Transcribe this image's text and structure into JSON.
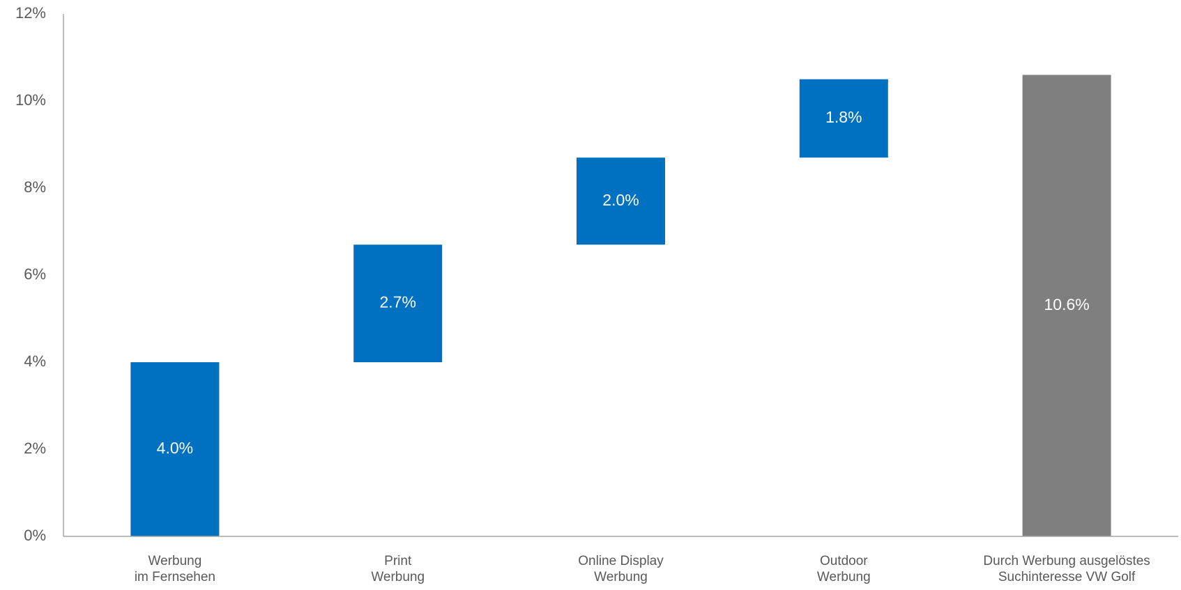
{
  "chart_data": {
    "type": "waterfall",
    "categories": [
      [
        "Werbung",
        "im Fernsehen"
      ],
      [
        "Print",
        "Werbung"
      ],
      [
        "Online Display",
        "Werbung"
      ],
      [
        "Outdoor",
        "Werbung"
      ],
      [
        "Durch Werbung ausgelöstes",
        "Suchinteresse VW Golf"
      ]
    ],
    "values": [
      4.0,
      2.7,
      2.0,
      1.8,
      10.6
    ],
    "value_labels": [
      "4.0%",
      "2.7%",
      "2.0%",
      "1.8%",
      "10.6%"
    ],
    "measures": [
      "relative",
      "relative",
      "relative",
      "relative",
      "total"
    ],
    "colors": [
      "#0070c0",
      "#0070c0",
      "#0070c0",
      "#0070c0",
      "#7f7f7f"
    ],
    "ylim": [
      0,
      12
    ],
    "yticks": [
      {
        "value": 0,
        "label": "0%"
      },
      {
        "value": 2,
        "label": "2%"
      },
      {
        "value": 4,
        "label": "4%"
      },
      {
        "value": 6,
        "label": "6%"
      },
      {
        "value": 8,
        "label": "8%"
      },
      {
        "value": 10,
        "label": "10%"
      },
      {
        "value": 12,
        "label": "12%"
      }
    ],
    "grid": false
  }
}
